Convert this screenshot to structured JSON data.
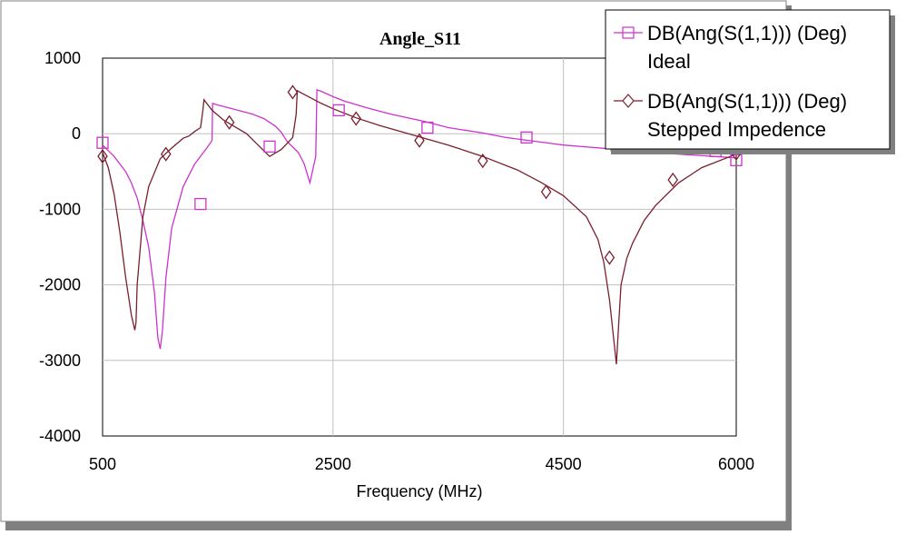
{
  "chart_data": {
    "type": "line",
    "title": "Angle_S11",
    "xlabel": "Frequency (MHz)",
    "ylabel": "",
    "xlim": [
      500,
      6000
    ],
    "ylim": [
      -4000,
      1000
    ],
    "xticks": [
      "500",
      "2500",
      "4500",
      "6000"
    ],
    "yticks": [
      "1000",
      "0",
      "-1000",
      "-2000",
      "-3000",
      "-4000"
    ],
    "xtick_values": [
      500,
      2500,
      4500,
      6000
    ],
    "ytick_values": [
      1000,
      0,
      -1000,
      -2000,
      -3000,
      -4000
    ],
    "grid": true,
    "legend_position": "top-right",
    "series": [
      {
        "name": "DB(Ang(S(1,1))) (Deg)",
        "name_line2": "Ideal",
        "color": "#cc33cc",
        "marker": "square",
        "x": [
          500,
          600,
          700,
          750,
          800,
          850,
          900,
          950,
          980,
          1000,
          1020,
          1050,
          1100,
          1200,
          1300,
          1400,
          1450,
          1455,
          1500,
          1600,
          1700,
          1800,
          1900,
          2000,
          2050,
          2100,
          2200,
          2250,
          2300,
          2350,
          2360,
          2400,
          2500,
          2600,
          2800,
          3000,
          3300,
          3500,
          3800,
          4000,
          4400,
          4500,
          4900,
          5000,
          5500,
          6000
        ],
        "y": [
          -150,
          -300,
          -500,
          -650,
          -850,
          -1150,
          -1500,
          -2100,
          -2700,
          -2850,
          -2600,
          -1900,
          -1250,
          -700,
          -400,
          -200,
          -90,
          400,
          380,
          340,
          300,
          260,
          200,
          100,
          20,
          -100,
          -250,
          -400,
          -650,
          -300,
          580,
          560,
          490,
          430,
          340,
          260,
          160,
          80,
          10,
          -50,
          -130,
          -150,
          -200,
          -220,
          -270,
          -320
        ],
        "markers_x": [
          500,
          1350,
          1950,
          2550,
          3320,
          4180,
          4960,
          5820,
          6000
        ],
        "markers_y": [
          -120,
          -930,
          -170,
          310,
          80,
          -50,
          -150,
          -230,
          -350
        ]
      },
      {
        "name": "DB(Ang(S(1,1))) (Deg)",
        "name_line2": "Stepped Impedence",
        "color": "#7a1f2e",
        "marker": "diamond",
        "x": [
          500,
          550,
          600,
          650,
          700,
          750,
          780,
          790,
          800,
          850,
          900,
          1000,
          1100,
          1200,
          1250,
          1300,
          1350,
          1370,
          1380,
          1450,
          1550,
          1650,
          1750,
          1850,
          1950,
          2050,
          2150,
          2180,
          2190,
          2200,
          2300,
          2400,
          2500,
          2700,
          2900,
          3200,
          3500,
          3800,
          4100,
          4300,
          4500,
          4700,
          4800,
          4850,
          4900,
          4960,
          4980,
          5000,
          5050,
          5100,
          5200,
          5300,
          5500,
          5700,
          6000
        ],
        "y": [
          -250,
          -450,
          -800,
          -1300,
          -1900,
          -2400,
          -2600,
          -2500,
          -2000,
          -1100,
          -700,
          -330,
          -190,
          -60,
          -30,
          30,
          80,
          300,
          450,
          310,
          180,
          90,
          0,
          -150,
          -300,
          -210,
          -50,
          250,
          570,
          560,
          480,
          400,
          330,
          210,
          110,
          -20,
          -150,
          -300,
          -480,
          -640,
          -820,
          -1100,
          -1400,
          -1700,
          -2200,
          -3050,
          -2500,
          -2000,
          -1650,
          -1450,
          -1150,
          -950,
          -650,
          -450,
          -270
        ],
        "markers_x": [
          500,
          1050,
          1600,
          2150,
          2700,
          3250,
          3800,
          4350,
          4900,
          5450,
          6000
        ],
        "markers_y": [
          -300,
          -270,
          150,
          550,
          200,
          -90,
          -360,
          -770,
          -1640,
          -610,
          -260
        ]
      }
    ]
  }
}
